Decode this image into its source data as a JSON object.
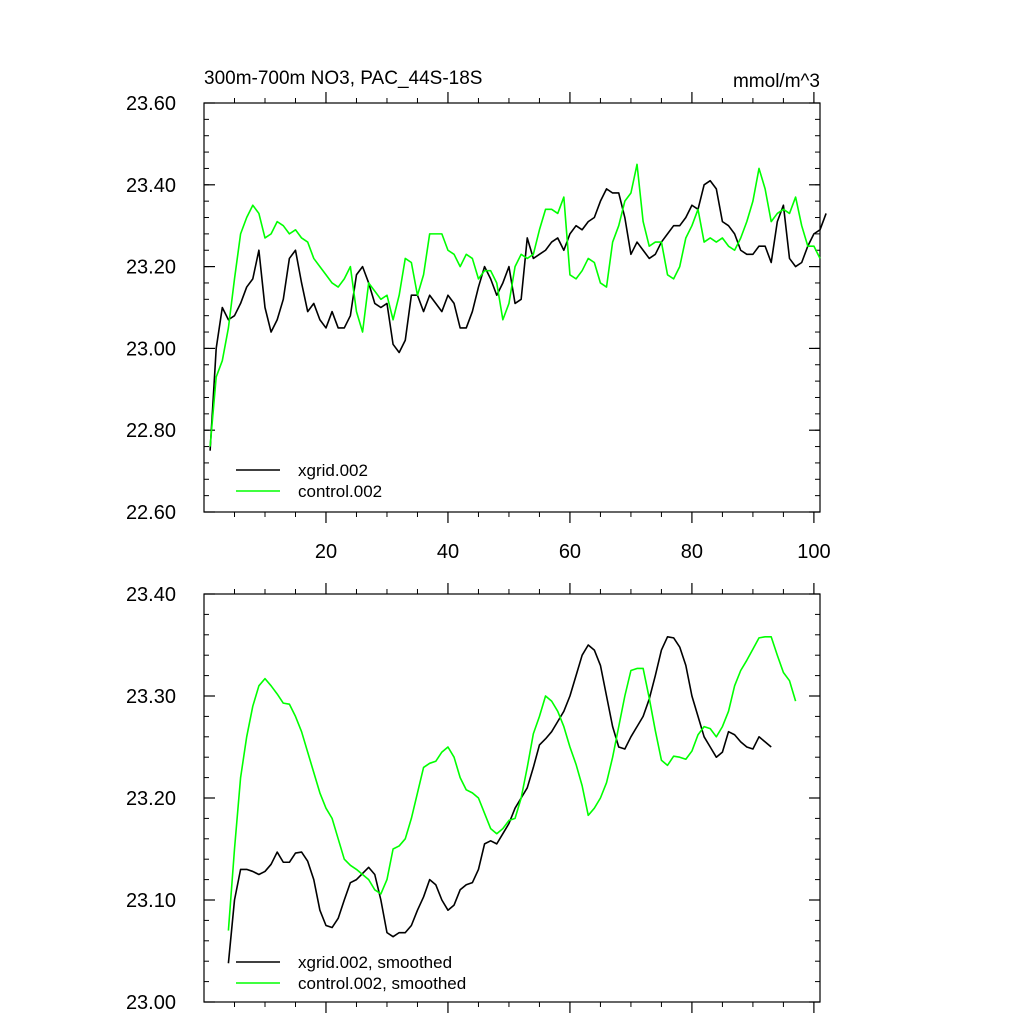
{
  "chart_data": [
    {
      "type": "line",
      "title": "300m-700m NO3, PAC_44S-18S",
      "units": "mmol/m^3",
      "xlim": [
        0,
        101
      ],
      "ylim": [
        22.6,
        23.6
      ],
      "x_ticks": [
        20,
        40,
        60,
        80,
        100
      ],
      "x_tick_labels": [
        "20",
        "40",
        "60",
        "80",
        "100"
      ],
      "y_ticks": [
        22.6,
        22.8,
        23.0,
        23.2,
        23.4,
        23.6
      ],
      "y_tick_labels": [
        "22.60",
        "22.80",
        "23.00",
        "23.20",
        "23.40",
        "23.60"
      ],
      "legend_position": "bottom-left",
      "series": [
        {
          "name": "xgrid.002",
          "color": "#000000",
          "x_start": 1,
          "values": [
            22.75,
            23.0,
            23.1,
            23.07,
            23.08,
            23.11,
            23.15,
            23.17,
            23.24,
            23.1,
            23.04,
            23.07,
            23.12,
            23.22,
            23.24,
            23.16,
            23.09,
            23.11,
            23.07,
            23.05,
            23.09,
            23.05,
            23.05,
            23.08,
            23.18,
            23.2,
            23.16,
            23.11,
            23.1,
            23.11,
            23.01,
            22.99,
            23.02,
            23.13,
            23.13,
            23.09,
            23.13,
            23.11,
            23.09,
            23.13,
            23.11,
            23.05,
            23.05,
            23.09,
            23.15,
            23.2,
            23.17,
            23.13,
            23.16,
            23.2,
            23.11,
            23.12,
            23.27,
            23.22,
            23.23,
            23.24,
            23.26,
            23.27,
            23.24,
            23.28,
            23.3,
            23.29,
            23.31,
            23.32,
            23.36,
            23.39,
            23.38,
            23.38,
            23.32,
            23.23,
            23.26,
            23.24,
            23.22,
            23.23,
            23.26,
            23.28,
            23.3,
            23.3,
            23.32,
            23.35,
            23.34,
            23.4,
            23.41,
            23.39,
            23.31,
            23.3,
            23.28,
            23.24,
            23.23,
            23.23,
            23.25,
            23.25,
            23.21,
            23.31,
            23.35,
            23.22,
            23.2,
            23.21,
            23.25,
            23.28,
            23.29,
            23.33
          ]
        },
        {
          "name": "control.002",
          "color": "#00ff00",
          "x_start": 1,
          "values": [
            22.76,
            22.93,
            22.97,
            23.05,
            23.17,
            23.28,
            23.32,
            23.35,
            23.33,
            23.27,
            23.28,
            23.31,
            23.3,
            23.28,
            23.29,
            23.27,
            23.26,
            23.22,
            23.2,
            23.18,
            23.16,
            23.15,
            23.17,
            23.2,
            23.09,
            23.04,
            23.16,
            23.14,
            23.12,
            23.13,
            23.07,
            23.13,
            23.22,
            23.21,
            23.13,
            23.18,
            23.28,
            23.28,
            23.28,
            23.24,
            23.23,
            23.2,
            23.23,
            23.22,
            23.17,
            23.19,
            23.19,
            23.16,
            23.07,
            23.11,
            23.2,
            23.23,
            23.22,
            23.23,
            23.29,
            23.34,
            23.34,
            23.33,
            23.37,
            23.18,
            23.17,
            23.19,
            23.22,
            23.21,
            23.16,
            23.15,
            23.26,
            23.3,
            23.36,
            23.38,
            23.45,
            23.31,
            23.25,
            23.26,
            23.26,
            23.18,
            23.17,
            23.2,
            23.27,
            23.3,
            23.34,
            23.26,
            23.27,
            23.26,
            23.27,
            23.25,
            23.24,
            23.27,
            23.31,
            23.36,
            23.44,
            23.39,
            23.31,
            23.33,
            23.34,
            23.33,
            23.37,
            23.3,
            23.25,
            23.25,
            23.22
          ]
        }
      ]
    },
    {
      "type": "line",
      "title": "",
      "units": "",
      "xlim": [
        0,
        101
      ],
      "ylim": [
        23.0,
        23.4
      ],
      "x_ticks": [
        20,
        40,
        60,
        80,
        100
      ],
      "x_tick_labels": [],
      "y_ticks": [
        23.0,
        23.1,
        23.2,
        23.3,
        23.4
      ],
      "y_tick_labels": [
        "23.00",
        "23.10",
        "23.20",
        "23.30",
        "23.40"
      ],
      "legend_position": "bottom-left",
      "series": [
        {
          "name": "xgrid.002, smoothed",
          "color": "#000000",
          "x_start": 4,
          "values": [
            23.038,
            23.1,
            23.13,
            23.13,
            23.128,
            23.125,
            23.128,
            23.135,
            23.147,
            23.137,
            23.137,
            23.146,
            23.147,
            23.138,
            23.12,
            23.09,
            23.075,
            23.073,
            23.082,
            23.1,
            23.117,
            23.12,
            23.126,
            23.132,
            23.125,
            23.1,
            23.068,
            23.064,
            23.068,
            23.068,
            23.075,
            23.09,
            23.103,
            23.12,
            23.115,
            23.1,
            23.09,
            23.095,
            23.11,
            23.115,
            23.117,
            23.13,
            23.155,
            23.158,
            23.155,
            23.165,
            23.175,
            23.19,
            23.2,
            23.21,
            23.23,
            23.252,
            23.258,
            23.265,
            23.275,
            23.285,
            23.3,
            23.32,
            23.34,
            23.35,
            23.345,
            23.33,
            23.3,
            23.27,
            23.25,
            23.248,
            23.26,
            23.27,
            23.28,
            23.297,
            23.32,
            23.345,
            23.358,
            23.357,
            23.348,
            23.33,
            23.3,
            23.28,
            23.26,
            23.25,
            23.24,
            23.245,
            23.265,
            23.262,
            23.255,
            23.25,
            23.248,
            23.26,
            23.255,
            23.25
          ]
        },
        {
          "name": "control.002, smoothed",
          "color": "#00ff00",
          "x_start": 4,
          "values": [
            23.07,
            23.15,
            23.22,
            23.26,
            23.29,
            23.31,
            23.317,
            23.31,
            23.302,
            23.293,
            23.292,
            23.28,
            23.265,
            23.245,
            23.225,
            23.205,
            23.19,
            23.18,
            23.16,
            23.14,
            23.134,
            23.13,
            23.125,
            23.12,
            23.11,
            23.106,
            23.12,
            23.15,
            23.153,
            23.16,
            23.18,
            23.205,
            23.23,
            23.234,
            23.236,
            23.245,
            23.25,
            23.24,
            23.22,
            23.208,
            23.205,
            23.2,
            23.185,
            23.17,
            23.165,
            23.17,
            23.178,
            23.18,
            23.2,
            23.23,
            23.263,
            23.28,
            23.3,
            23.295,
            23.285,
            23.27,
            23.25,
            23.233,
            23.212,
            23.183,
            23.19,
            23.2,
            23.215,
            23.24,
            23.27,
            23.3,
            23.325,
            23.327,
            23.327,
            23.298,
            23.266,
            23.237,
            23.232,
            23.241,
            23.24,
            23.238,
            23.246,
            23.262,
            23.27,
            23.268,
            23.26,
            23.27,
            23.285,
            23.31,
            23.325,
            23.335,
            23.346,
            23.357,
            23.358,
            23.358,
            23.34,
            23.323,
            23.315,
            23.295
          ]
        }
      ]
    }
  ]
}
